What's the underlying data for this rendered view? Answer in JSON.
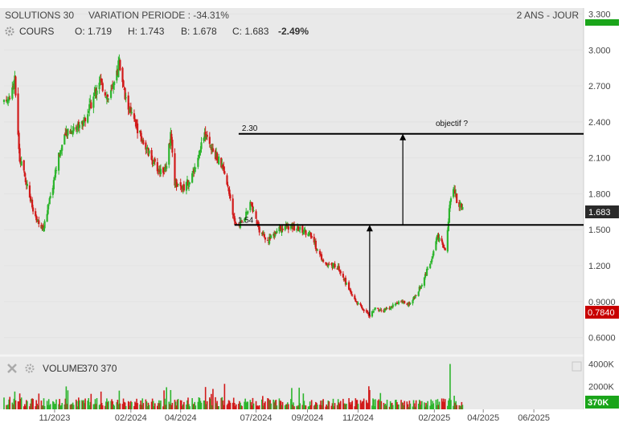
{
  "header": {
    "instrument": "SOLUTIONS 30",
    "variation_label": "VARIATION PERIODE : -34.31%",
    "period": "2 ANS - JOUR"
  },
  "price_legend": {
    "label": "COURS",
    "open_label": "O: 1.719",
    "high_label": "H: 1.743",
    "low_label": "B: 1.678",
    "close_label": "C: 1.683",
    "change": "-2.49%",
    "change_color": "#d0021b"
  },
  "volume_legend": {
    "label": "VOLUME",
    "value": "370 370"
  },
  "colors": {
    "up": "#2db52d",
    "down": "#d11a1a",
    "last_price_badge": "#2a2a2a",
    "low_badge": "#c80000",
    "volume_badge": "#1aa51a",
    "plot_bg": "#e9e9e9"
  },
  "badges": {
    "last_price": "1.683",
    "period_low": "0.7840",
    "last_volume": "370K"
  },
  "chart_data": {
    "type": "candlestick",
    "price_axis": {
      "ticks": [
        0.6,
        0.9,
        1.2,
        1.5,
        1.8,
        2.1,
        2.4,
        2.7,
        3.0,
        3.3
      ],
      "tick_labels": [
        "0.6000",
        "0.9000",
        "1.200",
        "1.500",
        "1.800",
        "2.100",
        "2.400",
        "2.700",
        "3.000",
        "3.300"
      ],
      "range": [
        0.45,
        3.35
      ]
    },
    "volume_axis": {
      "ticks": [
        2000000,
        4000000
      ],
      "tick_labels": [
        "2000K",
        "4000K"
      ],
      "range": [
        0,
        4600000
      ]
    },
    "x_axis": {
      "start": "2023-09-01",
      "end": "2025-07-31",
      "ticks": [
        "2023-11-01",
        "2024-02-01",
        "2024-04-01",
        "2024-07-01",
        "2024-09-01",
        "2024-11-01",
        "2025-02-01",
        "2025-04-01",
        "2025-06-01"
      ],
      "tick_labels": [
        "11/2023",
        "02/2024",
        "04/2024",
        "07/2024",
        "09/2024",
        "11/2024",
        "02/2025",
        "04/2025",
        "06/2025"
      ]
    },
    "close_path": [
      [
        "2023-09-01",
        2.55
      ],
      [
        "2023-09-10",
        2.65
      ],
      [
        "2023-09-14",
        2.75
      ],
      [
        "2023-09-20",
        2.1
      ],
      [
        "2023-09-28",
        1.9
      ],
      [
        "2023-10-08",
        1.6
      ],
      [
        "2023-10-18",
        1.5
      ],
      [
        "2023-10-28",
        1.8
      ],
      [
        "2023-11-05",
        2.1
      ],
      [
        "2023-11-15",
        2.3
      ],
      [
        "2023-11-25",
        2.35
      ],
      [
        "2023-12-05",
        2.4
      ],
      [
        "2023-12-15",
        2.55
      ],
      [
        "2023-12-25",
        2.75
      ],
      [
        "2024-01-05",
        2.6
      ],
      [
        "2024-01-12",
        2.7
      ],
      [
        "2024-01-18",
        2.9
      ],
      [
        "2024-01-25",
        2.6
      ],
      [
        "2024-02-05",
        2.4
      ],
      [
        "2024-02-15",
        2.25
      ],
      [
        "2024-02-25",
        2.1
      ],
      [
        "2024-03-05",
        2.0
      ],
      [
        "2024-03-15",
        2.0
      ],
      [
        "2024-03-20",
        2.3
      ],
      [
        "2024-03-25",
        1.9
      ],
      [
        "2024-04-05",
        1.85
      ],
      [
        "2024-04-15",
        1.95
      ],
      [
        "2024-04-25",
        2.2
      ],
      [
        "2024-05-01",
        2.3
      ],
      [
        "2024-05-10",
        2.15
      ],
      [
        "2024-05-20",
        2.05
      ],
      [
        "2024-06-01",
        1.75
      ],
      [
        "2024-06-05",
        1.55
      ],
      [
        "2024-06-12",
        1.55
      ],
      [
        "2024-06-20",
        1.65
      ],
      [
        "2024-06-25",
        1.72
      ],
      [
        "2024-07-05",
        1.5
      ],
      [
        "2024-07-15",
        1.4
      ],
      [
        "2024-07-25",
        1.48
      ],
      [
        "2024-08-05",
        1.53
      ],
      [
        "2024-08-15",
        1.52
      ],
      [
        "2024-08-25",
        1.5
      ],
      [
        "2024-09-05",
        1.45
      ],
      [
        "2024-09-15",
        1.3
      ],
      [
        "2024-09-25",
        1.2
      ],
      [
        "2024-10-05",
        1.2
      ],
      [
        "2024-10-12",
        1.15
      ],
      [
        "2024-10-20",
        1.0
      ],
      [
        "2024-11-01",
        0.88
      ],
      [
        "2024-11-10",
        0.82
      ],
      [
        "2024-11-15",
        0.784
      ],
      [
        "2024-11-22",
        0.85
      ],
      [
        "2024-12-01",
        0.82
      ],
      [
        "2024-12-10",
        0.85
      ],
      [
        "2024-12-20",
        0.9
      ],
      [
        "2025-01-01",
        0.88
      ],
      [
        "2025-01-10",
        0.95
      ],
      [
        "2025-01-20",
        1.1
      ],
      [
        "2025-01-28",
        1.25
      ],
      [
        "2025-02-05",
        1.45
      ],
      [
        "2025-02-10",
        1.4
      ],
      [
        "2025-02-15",
        1.3
      ],
      [
        "2025-02-20",
        1.75
      ],
      [
        "2025-02-25",
        1.85
      ],
      [
        "2025-03-01",
        1.72
      ],
      [
        "2025-03-07",
        1.683
      ]
    ],
    "volume_profile": [
      [
        "2023-09-01",
        700000
      ],
      [
        "2023-11-01",
        600000
      ],
      [
        "2024-01-01",
        650000
      ],
      [
        "2024-03-01",
        600000
      ],
      [
        "2024-05-01",
        700000
      ],
      [
        "2024-07-01",
        650000
      ],
      [
        "2024-09-01",
        550000
      ],
      [
        "2024-11-01",
        650000
      ],
      [
        "2025-01-01",
        500000
      ],
      [
        "2025-02-15",
        700000
      ],
      [
        "2025-03-07",
        400000
      ]
    ],
    "volume_spikes": [
      [
        "2025-02-20",
        4000000
      ],
      [
        "2025-02-22",
        2100000
      ],
      [
        "2025-02-25",
        1200000
      ],
      [
        "2024-05-10",
        1800000
      ],
      [
        "2024-03-20",
        1700000
      ],
      [
        "2024-01-18",
        1650000
      ],
      [
        "2024-11-15",
        1700000
      ],
      [
        "2023-09-20",
        1400000
      ]
    ],
    "annotations": {
      "support": {
        "value": 1.54,
        "label": "1.54",
        "from": "2024-06-05",
        "to": "2025-07-31"
      },
      "target": {
        "value": 2.3,
        "label": "2.30",
        "from": "2024-06-10",
        "to": "2025-07-31",
        "caption": "objectif ?"
      },
      "arrows": [
        {
          "date": "2024-11-15",
          "from_value": 0.784,
          "to_value": 1.54
        },
        {
          "date": "2024-12-25",
          "from_value": 1.54,
          "to_value": 2.3
        }
      ]
    }
  }
}
